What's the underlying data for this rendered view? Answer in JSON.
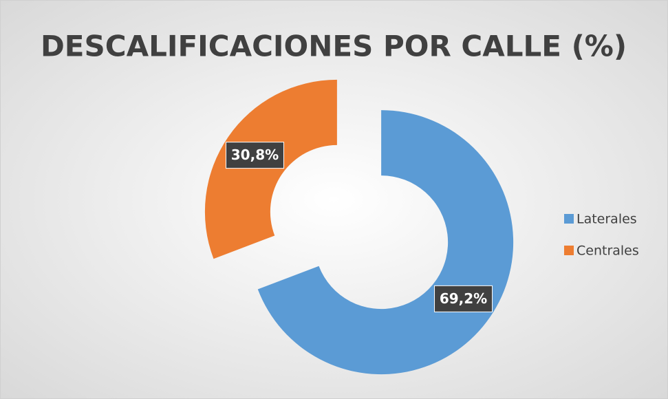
{
  "chart_data": {
    "type": "donut",
    "title": "DESCALIFICACIONES POR CALLE (%)",
    "categories": [
      "Laterales",
      "Centrales"
    ],
    "values": [
      69.2,
      30.8
    ],
    "value_labels": [
      "69,2%",
      "30,8%"
    ],
    "colors": [
      "#5b9bd5",
      "#ed7d31"
    ],
    "legend": "right"
  }
}
